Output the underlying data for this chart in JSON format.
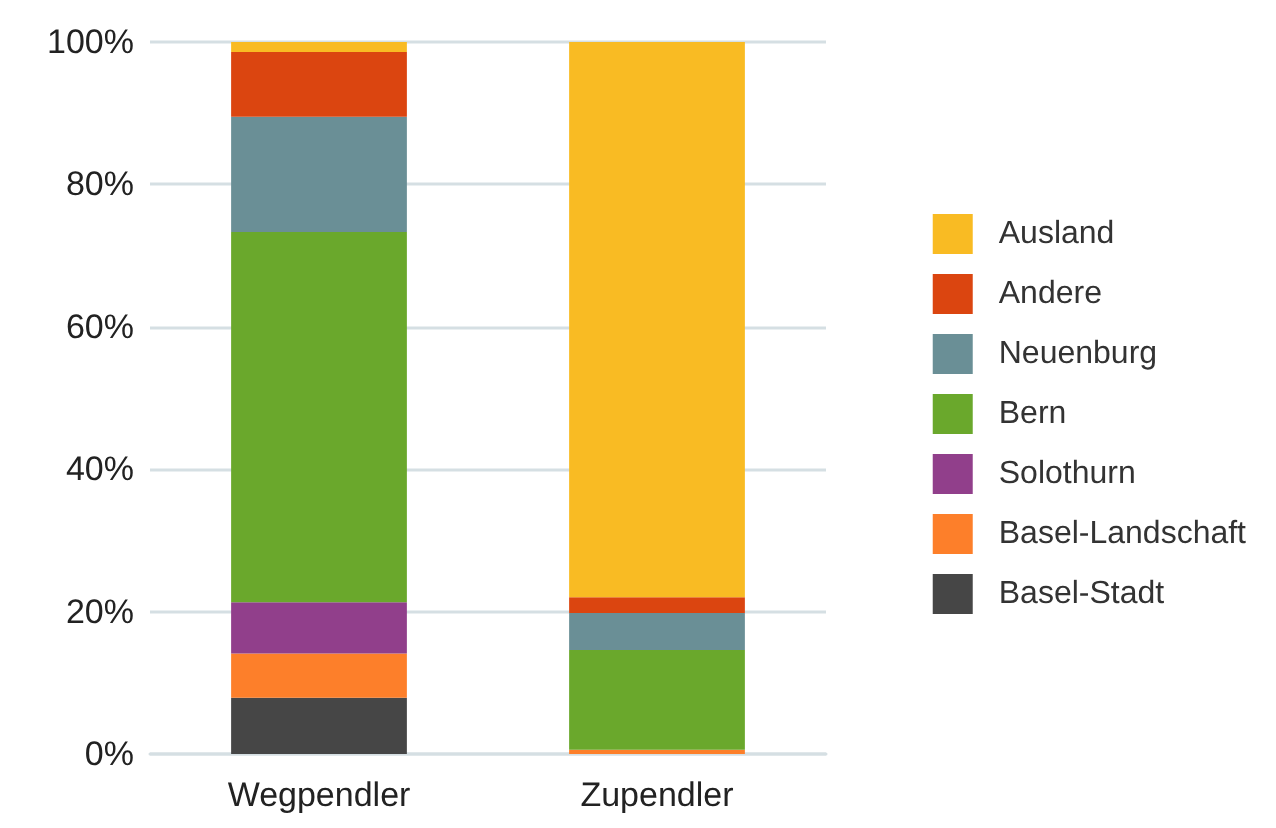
{
  "chart_data": {
    "type": "bar",
    "stacked": true,
    "categories": [
      "Wegpendler",
      "Zupendler"
    ],
    "series": [
      {
        "name": "Basel-Stadt",
        "color": "#464646",
        "values": [
          7.9,
          0
        ]
      },
      {
        "name": "Basel-Landschaft",
        "color": "#fd7f2a",
        "values": [
          6.2,
          0.6
        ]
      },
      {
        "name": "Solothurn",
        "color": "#913f8b",
        "values": [
          7.2,
          0
        ]
      },
      {
        "name": "Bern",
        "color": "#6aa82c",
        "values": [
          52.0,
          14.0
        ]
      },
      {
        "name": "Neuenburg",
        "color": "#6a8f96",
        "values": [
          16.2,
          5.2
        ]
      },
      {
        "name": "Andere",
        "color": "#db4510",
        "values": [
          9.1,
          2.2
        ]
      },
      {
        "name": "Ausland",
        "color": "#f9bb23",
        "values": [
          1.4,
          78.0
        ]
      }
    ],
    "ylim": [
      0,
      100
    ],
    "yticks": [
      {
        "value": 0,
        "label": "0%"
      },
      {
        "value": 20,
        "label": "20%"
      },
      {
        "value": 40,
        "label": "40%"
      },
      {
        "value": 60,
        "label": "60%"
      },
      {
        "value": 80,
        "label": "80%"
      },
      {
        "value": 100,
        "label": "100%"
      }
    ],
    "grid": "y",
    "legend": "right"
  }
}
